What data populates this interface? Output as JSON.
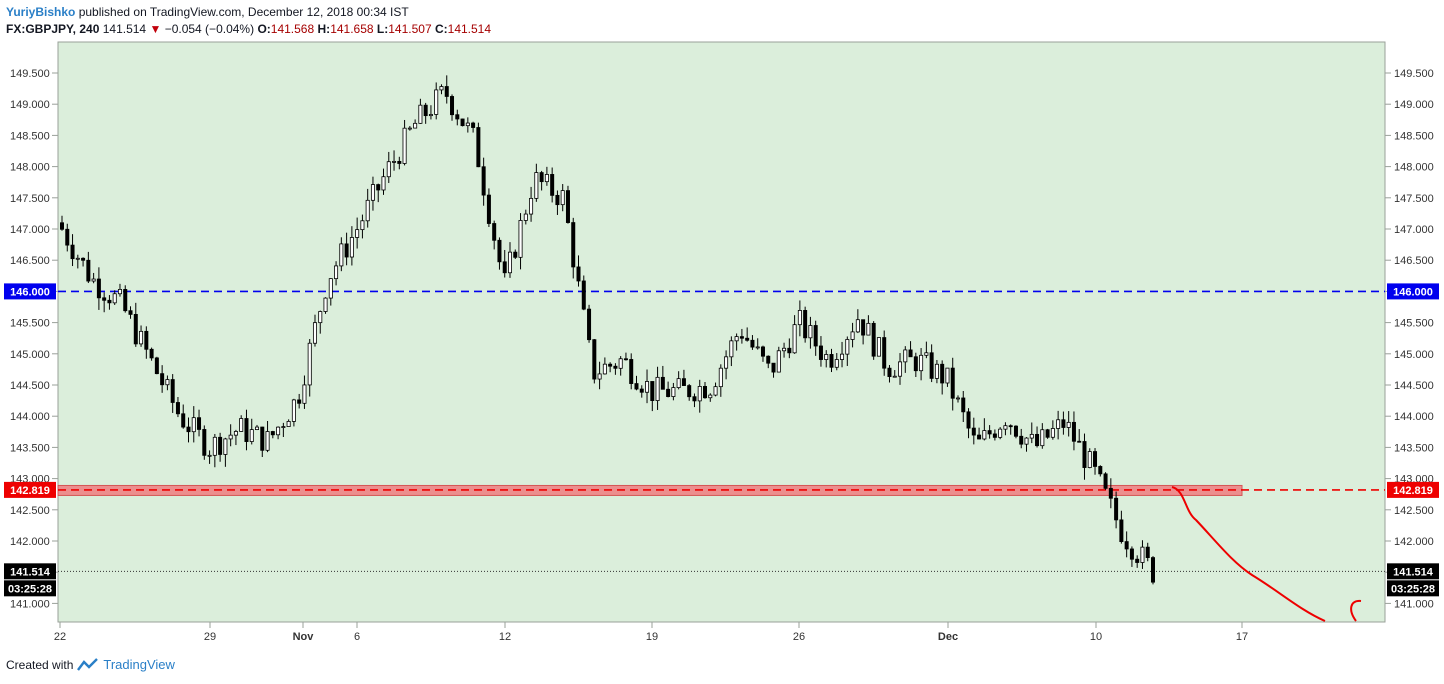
{
  "header": {
    "author": "YuriyBishko",
    "published": "published on TradingView.com, December 12, 2018 00:34 IST",
    "symbol": "FX:GBPJPY, 240",
    "last": "141.514",
    "change": "−0.054 (−0.04%)",
    "o_label": "O:",
    "o": "141.568",
    "h_label": "H:",
    "h": "141.658",
    "l_label": "L:",
    "l": "141.507",
    "c_label": "C:",
    "c": "141.514"
  },
  "footer": {
    "created": "Created with",
    "brand": "TradingView"
  },
  "colors": {
    "plot_bg": "#dbeedb",
    "support_line": "#0000ee",
    "resistance_line": "#ee0000",
    "zone_fill": "#ec8e8e",
    "candle": "#000000",
    "projection": "#ee0000"
  },
  "chart_data": {
    "type": "candlestick",
    "timeframe": "240",
    "x_tick_labels": [
      "22",
      "29",
      "Nov",
      "6",
      "12",
      "19",
      "26",
      "Dec",
      "10",
      "17"
    ],
    "y_tick_labels": [
      "149.500",
      "149.000",
      "148.500",
      "148.000",
      "147.500",
      "147.000",
      "146.500",
      "146.000",
      "145.500",
      "145.000",
      "144.500",
      "144.000",
      "143.500",
      "143.000",
      "142.500",
      "142.000",
      "141.500",
      "141.000"
    ],
    "ylim": [
      140.75,
      149.75
    ],
    "grid": false,
    "levels": [
      {
        "price": 146.0,
        "label": "146.000",
        "style": "dashed",
        "color": "#0000ee"
      },
      {
        "price": 142.819,
        "label": "142.819",
        "style": "dashed",
        "color": "#ee0000"
      }
    ],
    "zone": {
      "from": 142.73,
      "to": 142.89
    },
    "current_price": {
      "price": 141.514,
      "label": "141.514",
      "countdown": "03:25:28"
    },
    "price_path": [
      {
        "x": "22",
        "close": 147.0
      },
      {
        "x": "23",
        "close": 146.2
      },
      {
        "x": "24",
        "close": 145.8
      },
      {
        "x": "25",
        "close": 144.9
      },
      {
        "x": "26",
        "close": 144.0
      },
      {
        "x": "29",
        "close": 143.5
      },
      {
        "x": "30",
        "close": 143.8
      },
      {
        "x": "31",
        "close": 143.6
      },
      {
        "x": "Nov",
        "close": 144.3
      },
      {
        "x": "2",
        "close": 146.2
      },
      {
        "x": "5",
        "close": 147.0
      },
      {
        "x": "6",
        "close": 147.9
      },
      {
        "x": "7",
        "close": 148.7
      },
      {
        "x": "8",
        "close": 149.2
      },
      {
        "x": "9",
        "close": 148.4
      },
      {
        "x": "12",
        "close": 146.1
      },
      {
        "x": "13",
        "close": 147.8
      },
      {
        "x": "14",
        "close": 147.5
      },
      {
        "x": "15",
        "close": 144.7
      },
      {
        "x": "16",
        "close": 144.9
      },
      {
        "x": "19",
        "close": 144.4
      },
      {
        "x": "20",
        "close": 144.4
      },
      {
        "x": "21",
        "close": 144.5
      },
      {
        "x": "22",
        "close": 145.4
      },
      {
        "x": "23",
        "close": 144.7
      },
      {
        "x": "26",
        "close": 145.5
      },
      {
        "x": "27",
        "close": 144.9
      },
      {
        "x": "28",
        "close": 145.6
      },
      {
        "x": "29",
        "close": 144.8
      },
      {
        "x": "30",
        "close": 144.9
      },
      {
        "x": "Dec",
        "close": 144.6
      },
      {
        "x": "3",
        "close": 143.5
      },
      {
        "x": "4",
        "close": 144.0
      },
      {
        "x": "5",
        "close": 143.5
      },
      {
        "x": "6",
        "close": 143.9
      },
      {
        "x": "7",
        "close": 143.1
      },
      {
        "x": "10",
        "close": 142.1
      },
      {
        "x": "11",
        "close": 141.51
      }
    ]
  }
}
